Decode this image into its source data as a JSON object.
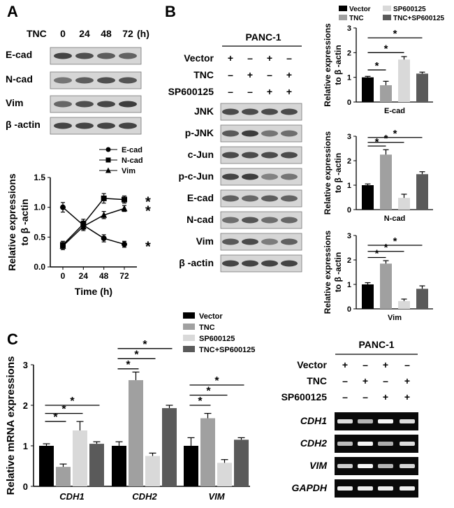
{
  "panels": {
    "a": "A",
    "b": "B",
    "c": "C"
  },
  "colors": {
    "black": "#000000",
    "gray": "#a0a0a0",
    "light": "#d9d9d9",
    "dark": "#5a5a5a"
  },
  "panel_a_blot": {
    "header": "TNC",
    "unit": "(h)",
    "times": [
      "0",
      "24",
      "48",
      "72"
    ],
    "rows": [
      "E-cad",
      "N-cad",
      "Vim",
      "β -actin"
    ]
  },
  "panel_b_blot": {
    "title": "PANC-1",
    "treatments": [
      {
        "label": "Vector",
        "marks": [
          "+",
          "–",
          "+",
          "–"
        ]
      },
      {
        "label": "TNC",
        "marks": [
          "–",
          "+",
          "–",
          "+"
        ]
      },
      {
        "label": "SP600125",
        "marks": [
          "–",
          "–",
          "+",
          "+"
        ]
      }
    ],
    "rows": [
      "JNK",
      "p-JNK",
      "c-Jun",
      "p-c-Jun",
      "E-cad",
      "N-cad",
      "Vim",
      "β -actin"
    ]
  },
  "panel_c_gel": {
    "title": "PANC-1",
    "treatments": [
      {
        "label": "Vector",
        "marks": [
          "+",
          "–",
          "+",
          "–"
        ]
      },
      {
        "label": "TNC",
        "marks": [
          "–",
          "+",
          "–",
          "+"
        ]
      },
      {
        "label": "SP600125",
        "marks": [
          "–",
          "–",
          "+",
          "+"
        ]
      }
    ],
    "rows": [
      "CDH1",
      "CDH2",
      "VIM",
      "GAPDH"
    ]
  },
  "legend_b": [
    "Vector",
    "TNC",
    "SP600125",
    "TNC+SP600125"
  ],
  "significance_mark": "*",
  "chart_data": [
    {
      "id": "a_line",
      "type": "line",
      "x": [
        0,
        24,
        48,
        72
      ],
      "xticks": [
        "0",
        "24",
        "48",
        "72"
      ],
      "xlabel": "Time (h)",
      "ylabel_line1": "Relative expressions",
      "ylabel_line2": "to β -actin",
      "ylim": [
        0,
        1.5
      ],
      "yticks": [
        "0.0",
        "0.5",
        "1.0",
        "1.5"
      ],
      "series": [
        {
          "name": "E-cad",
          "marker": "circle",
          "values": [
            1.0,
            0.7,
            0.48,
            0.38
          ],
          "err": [
            0.08,
            0.07,
            0.06,
            0.05
          ]
        },
        {
          "name": "N-cad",
          "marker": "square",
          "values": [
            0.37,
            0.72,
            1.15,
            1.13
          ],
          "err": [
            0.06,
            0.08,
            0.08,
            0.06
          ]
        },
        {
          "name": "Vim",
          "marker": "triangle",
          "values": [
            0.35,
            0.68,
            0.87,
            0.98
          ],
          "err": [
            0.06,
            0.07,
            0.06,
            0.05
          ]
        }
      ]
    },
    {
      "id": "b_ecad",
      "type": "bar",
      "title": "E-cad",
      "categories": [
        "Vector",
        "TNC",
        "SP600125",
        "TNC+SP600125"
      ],
      "values": [
        1.0,
        0.68,
        1.72,
        1.15
      ],
      "err": [
        0.04,
        0.16,
        0.12,
        0.06
      ],
      "ylabel_line1": "Relative expressions",
      "ylabel_line2": "to β -actin",
      "ylim": [
        0,
        3
      ],
      "yticks": [
        "0",
        "1",
        "2",
        "3"
      ]
    },
    {
      "id": "b_ncad",
      "type": "bar",
      "title": "N-cad",
      "categories": [
        "Vector",
        "TNC",
        "SP600125",
        "TNC+SP600125"
      ],
      "values": [
        1.0,
        2.25,
        0.48,
        1.45
      ],
      "err": [
        0.05,
        0.2,
        0.15,
        0.1
      ],
      "ylabel_line1": "Relative expressions",
      "ylabel_line2": "to β -actin",
      "ylim": [
        0,
        3
      ],
      "yticks": [
        "0",
        "1",
        "2",
        "3"
      ]
    },
    {
      "id": "b_vim",
      "type": "bar",
      "title": "Vim",
      "categories": [
        "Vector",
        "TNC",
        "SP600125",
        "TNC+SP600125"
      ],
      "values": [
        1.0,
        1.85,
        0.32,
        0.82
      ],
      "err": [
        0.07,
        0.12,
        0.08,
        0.12
      ],
      "ylabel_line1": "Relative expressions",
      "ylabel_line2": "to β -actin",
      "ylim": [
        0,
        3
      ],
      "yticks": [
        "0",
        "1",
        "2",
        "3"
      ]
    },
    {
      "id": "c_mrna",
      "type": "bar",
      "categories": [
        "CDH1",
        "CDH2",
        "VIM"
      ],
      "series": [
        {
          "name": "Vector",
          "values": [
            1.0,
            1.0,
            1.0
          ],
          "err": [
            0.05,
            0.1,
            0.2
          ]
        },
        {
          "name": "TNC",
          "values": [
            0.48,
            2.62,
            1.68
          ],
          "err": [
            0.07,
            0.2,
            0.12
          ]
        },
        {
          "name": "SP600125",
          "values": [
            1.38,
            0.75,
            0.58
          ],
          "err": [
            0.22,
            0.07,
            0.08
          ]
        },
        {
          "name": "TNC+SP600125",
          "values": [
            1.05,
            1.93,
            1.15
          ],
          "err": [
            0.05,
            0.07,
            0.05
          ]
        }
      ],
      "ylabel": "Relative mRNA expressions",
      "ylim": [
        0,
        3
      ],
      "yticks": [
        "0",
        "1",
        "2",
        "3"
      ]
    }
  ]
}
